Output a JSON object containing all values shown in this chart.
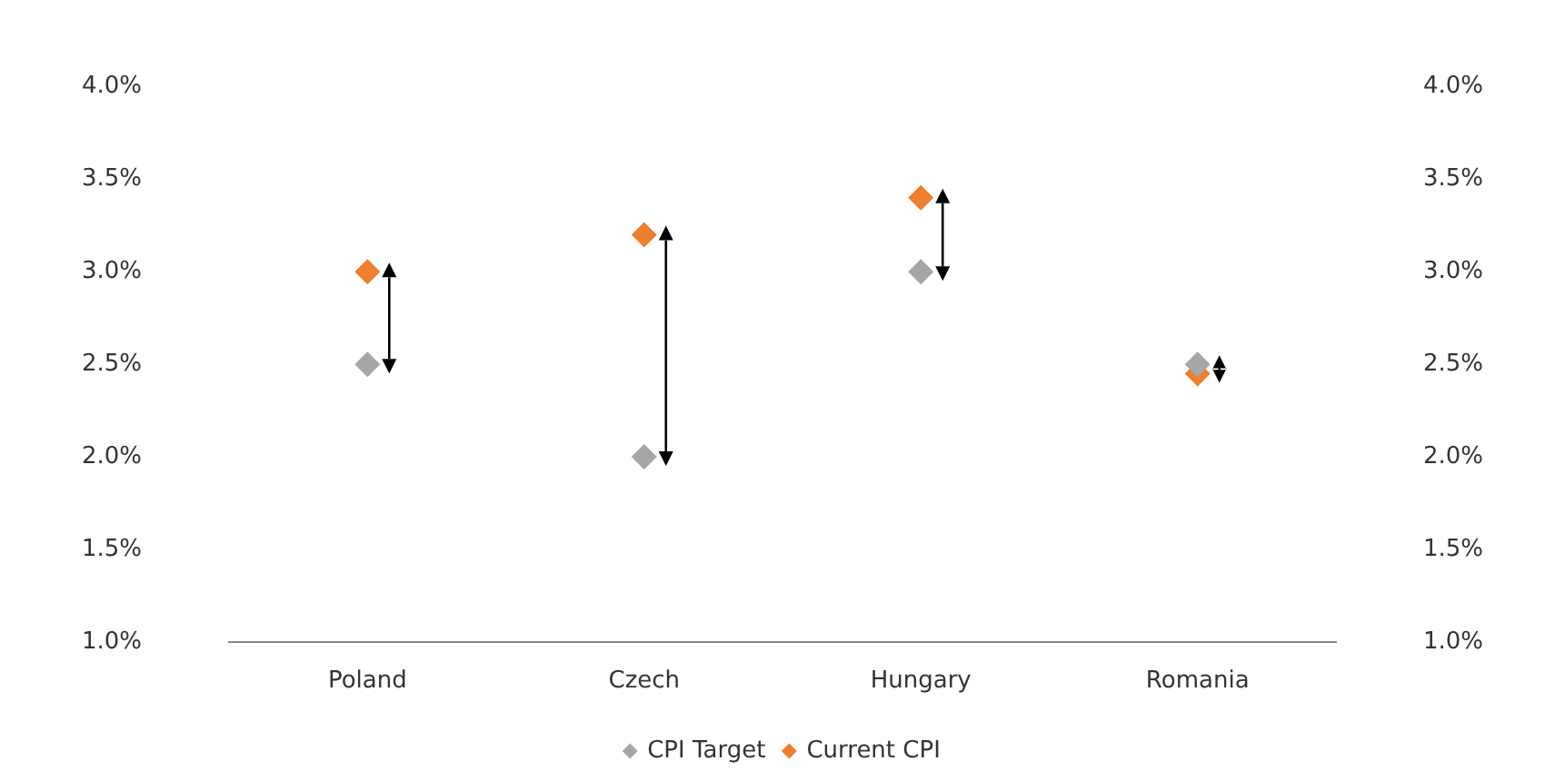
{
  "chart_data": {
    "type": "scatter",
    "categories": [
      "Poland",
      "Czech",
      "Hungary",
      "Romania"
    ],
    "series": [
      {
        "name": "CPI Target",
        "color": "#a6a6a6",
        "values": [
          2.5,
          2.0,
          3.0,
          2.5
        ]
      },
      {
        "name": "Current CPI",
        "color": "#ee7f2d",
        "values": [
          3.0,
          3.2,
          3.4,
          2.45
        ]
      }
    ],
    "ylim": [
      1.0,
      4.0
    ],
    "yticks": [
      {
        "value": 1.0,
        "label": "1.0%"
      },
      {
        "value": 1.5,
        "label": "1.5%"
      },
      {
        "value": 2.0,
        "label": "2.0%"
      },
      {
        "value": 2.5,
        "label": "2.5%"
      },
      {
        "value": 3.0,
        "label": "3.0%"
      },
      {
        "value": 3.5,
        "label": "3.5%"
      },
      {
        "value": 4.0,
        "label": "4.0%"
      }
    ],
    "y2lim": [
      1.0,
      4.0
    ],
    "y2ticks": [
      {
        "value": 1.0,
        "label": "1.0%"
      },
      {
        "value": 1.5,
        "label": "1.5%"
      },
      {
        "value": 2.0,
        "label": "2.0%"
      },
      {
        "value": 2.5,
        "label": "2.5%"
      },
      {
        "value": 3.0,
        "label": "3.0%"
      },
      {
        "value": 3.5,
        "label": "3.5%"
      },
      {
        "value": 4.0,
        "label": "4.0%"
      }
    ],
    "grid": false,
    "legend": "bottom",
    "marker": "diamond"
  }
}
